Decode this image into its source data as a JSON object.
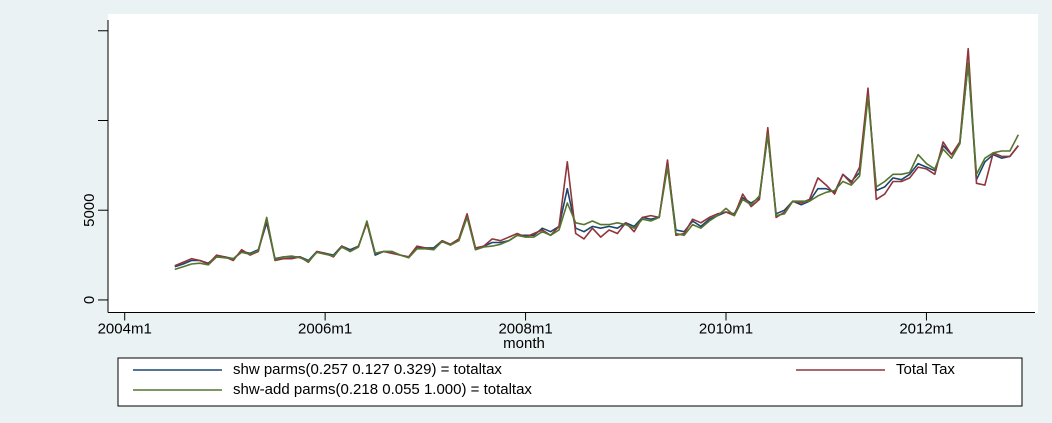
{
  "chart_data": {
    "type": "line",
    "x_title": "month",
    "x": [
      "2004m7",
      "2004m8",
      "2004m9",
      "2004m10",
      "2004m11",
      "2004m12",
      "2005m1",
      "2005m2",
      "2005m3",
      "2005m4",
      "2005m5",
      "2005m6",
      "2005m7",
      "2005m8",
      "2005m9",
      "2005m10",
      "2005m11",
      "2005m12",
      "2006m1",
      "2006m2",
      "2006m3",
      "2006m4",
      "2006m5",
      "2006m6",
      "2006m7",
      "2006m8",
      "2006m9",
      "2006m10",
      "2006m11",
      "2006m12",
      "2007m1",
      "2007m2",
      "2007m3",
      "2007m4",
      "2007m5",
      "2007m6",
      "2007m7",
      "2007m8",
      "2007m9",
      "2007m10",
      "2007m11",
      "2007m12",
      "2008m1",
      "2008m2",
      "2008m3",
      "2008m4",
      "2008m5",
      "2008m6",
      "2008m7",
      "2008m8",
      "2008m9",
      "2008m10",
      "2008m11",
      "2008m12",
      "2009m1",
      "2009m2",
      "2009m3",
      "2009m4",
      "2009m5",
      "2009m6",
      "2009m7",
      "2009m8",
      "2009m9",
      "2009m10",
      "2009m11",
      "2009m12",
      "2010m1",
      "2010m2",
      "2010m3",
      "2010m4",
      "2010m5",
      "2010m6",
      "2010m7",
      "2010m8",
      "2010m9",
      "2010m10",
      "2010m11",
      "2010m12",
      "2011m1",
      "2011m2",
      "2011m3",
      "2011m4",
      "2011m5",
      "2011m6",
      "2011m7",
      "2011m8",
      "2011m9",
      "2011m10",
      "2011m11",
      "2011m12",
      "2012m1",
      "2012m2",
      "2012m3",
      "2012m4",
      "2012m5",
      "2012m6",
      "2012m7",
      "2012m8",
      "2012m9",
      "2012m10",
      "2012m11",
      "2012m12"
    ],
    "series": [
      {
        "name": "shw parms(0.257 0.127 0.329) = totaltax",
        "color": "#1a476f",
        "values": [
          1850,
          2000,
          2200,
          2200,
          2050,
          2400,
          2400,
          2300,
          2700,
          2600,
          2800,
          4300,
          2300,
          2400,
          2400,
          2400,
          2200,
          2700,
          2600,
          2500,
          3000,
          2800,
          3000,
          4300,
          2500,
          2700,
          2700,
          2500,
          2400,
          2900,
          2900,
          2900,
          3300,
          3100,
          3300,
          4700,
          2800,
          3000,
          3200,
          3200,
          3300,
          3600,
          3600,
          3600,
          4000,
          3800,
          4100,
          6200,
          4000,
          3800,
          4100,
          4000,
          4100,
          4000,
          4300,
          4100,
          4600,
          4500,
          4600,
          7600,
          3900,
          3800,
          4400,
          4100,
          4500,
          4700,
          4900,
          4800,
          5700,
          5400,
          5700,
          9200,
          4800,
          5000,
          5500,
          5300,
          5500,
          6200,
          6200,
          6000,
          7000,
          6600,
          7100,
          11600,
          6100,
          6300,
          6800,
          6700,
          7000,
          7600,
          7400,
          7200,
          8600,
          8100,
          8700,
          13200,
          6700,
          7700,
          8100,
          7900,
          8000,
          8600
        ]
      },
      {
        "name": "Total Tax",
        "color": "#90353b",
        "values": [
          1900,
          2100,
          2300,
          2200,
          2000,
          2500,
          2400,
          2200,
          2800,
          2500,
          2700,
          4500,
          2200,
          2300,
          2300,
          2400,
          2100,
          2700,
          2600,
          2400,
          3000,
          2700,
          3000,
          4300,
          2600,
          2700,
          2600,
          2500,
          2400,
          3000,
          2900,
          2800,
          3300,
          3100,
          3400,
          4800,
          2900,
          3000,
          3400,
          3300,
          3500,
          3700,
          3500,
          3700,
          3900,
          3600,
          4100,
          7700,
          3700,
          3400,
          4000,
          3500,
          3900,
          3700,
          4300,
          3800,
          4600,
          4700,
          4600,
          7800,
          3600,
          3700,
          4500,
          4300,
          4600,
          4800,
          4900,
          4700,
          5900,
          5200,
          5600,
          9600,
          4600,
          4900,
          5500,
          5400,
          5600,
          6800,
          6400,
          5900,
          7000,
          6500,
          7400,
          11800,
          5600,
          5900,
          6600,
          6600,
          6800,
          7400,
          7300,
          7000,
          8800,
          8100,
          8800,
          14000,
          6500,
          6400,
          8200,
          8000,
          8000,
          8600
        ]
      },
      {
        "name": "shw-add parms(0.218 0.055 1.000) = totaltax",
        "color": "#55752f",
        "values": [
          1700,
          1850,
          2000,
          2050,
          1950,
          2400,
          2350,
          2300,
          2650,
          2550,
          2750,
          4600,
          2250,
          2400,
          2450,
          2350,
          2150,
          2650,
          2550,
          2450,
          2950,
          2700,
          2950,
          4400,
          2600,
          2700,
          2700,
          2500,
          2350,
          2850,
          2850,
          2800,
          3250,
          3050,
          3300,
          4600,
          2800,
          2950,
          3000,
          3100,
          3300,
          3600,
          3500,
          3500,
          3800,
          3600,
          3900,
          5400,
          4300,
          4200,
          4400,
          4200,
          4200,
          4300,
          4200,
          4000,
          4500,
          4400,
          4600,
          7400,
          3700,
          3600,
          4200,
          4000,
          4400,
          4700,
          5100,
          4700,
          5600,
          5300,
          5800,
          9200,
          4700,
          4800,
          5500,
          5500,
          5500,
          5800,
          6000,
          6100,
          6600,
          6400,
          6900,
          11300,
          6300,
          6600,
          7000,
          7000,
          7100,
          8100,
          7600,
          7300,
          8400,
          7900,
          8700,
          13200,
          7000,
          7900,
          8200,
          8300,
          8300,
          9200
        ]
      }
    ],
    "xlim": [
      "2003m11",
      "2013m2"
    ],
    "xticks": [
      "2004m1",
      "2006m1",
      "2008m1",
      "2010m1",
      "2012m1"
    ],
    "ylim": [
      -700,
      15600
    ],
    "yticks": [
      0,
      5000
    ],
    "yticks_unlabeled": [
      10000,
      15000
    ]
  }
}
